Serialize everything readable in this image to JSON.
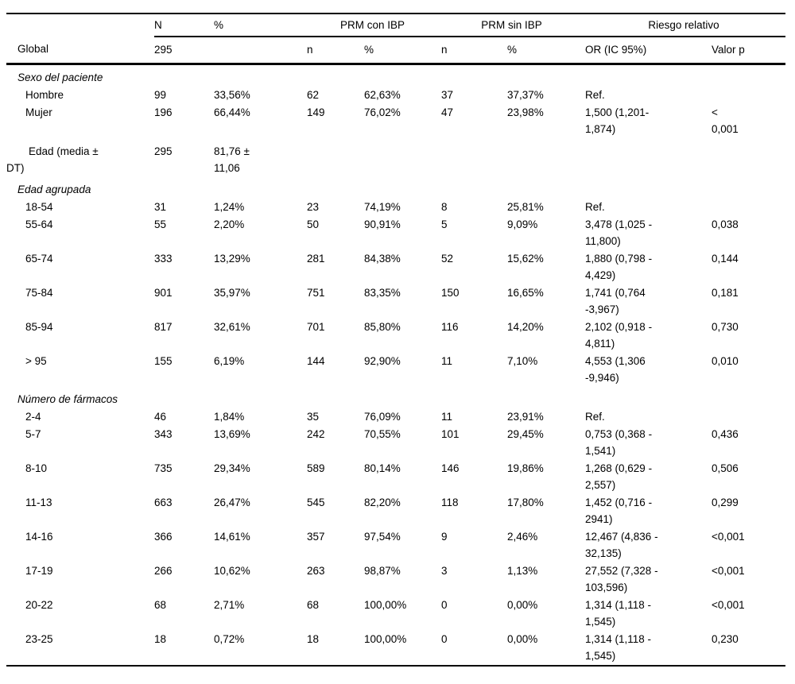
{
  "page": {
    "background_color": "#ffffff",
    "text_color": "#000000",
    "rule_color": "#000000"
  },
  "table": {
    "group_header": {
      "n": "N",
      "pct": "%",
      "prm_con_ibp": "PRM con IBP",
      "prm_sin_ibp": "PRM sin IBP",
      "riesgo_relativo": "Riesgo relativo"
    },
    "global_row": {
      "label": "Global",
      "n": "295",
      "pct": "",
      "n1": "n",
      "pct1": "%",
      "n2": "n",
      "pct2": "%",
      "or": "OR (IC 95%)",
      "p": "Valor p"
    },
    "rows": [
      {
        "type": "section",
        "label": "Sexo del paciente",
        "n": "",
        "pct": "",
        "n1": "",
        "pct1": "",
        "n2": "",
        "pct2": "",
        "or": "",
        "p": ""
      },
      {
        "type": "item",
        "label": "Hombre",
        "n": "99",
        "pct": "33,56%",
        "n1": "62",
        "pct1": "62,63%",
        "n2": "37",
        "pct2": "37,37%",
        "or": "Ref.",
        "p": ""
      },
      {
        "type": "item",
        "label": "Mujer",
        "n": "196",
        "pct": "66,44%",
        "n1": "149",
        "pct1": "76,02%",
        "n2": "47",
        "pct2": "23,98%",
        "or": "1,500 (1,201-\n1,874)",
        "p": "<\n0,001"
      },
      {
        "type": "hang",
        "label": "Edad (media ±\nDT)",
        "n": "295",
        "pct": "81,76 ±\n11,06",
        "n1": "",
        "pct1": "",
        "n2": "",
        "pct2": "",
        "or": "",
        "p": ""
      },
      {
        "type": "section",
        "label": "Edad agrupada",
        "n": "",
        "pct": "",
        "n1": "",
        "pct1": "",
        "n2": "",
        "pct2": "",
        "or": "",
        "p": ""
      },
      {
        "type": "item",
        "label": "18-54",
        "n": "31",
        "pct": "1,24%",
        "n1": "23",
        "pct1": "74,19%",
        "n2": "8",
        "pct2": "25,81%",
        "or": "Ref.",
        "p": ""
      },
      {
        "type": "item",
        "label": "55-64",
        "n": "55",
        "pct": "2,20%",
        "n1": "50",
        "pct1": "90,91%",
        "n2": "5",
        "pct2": "9,09%",
        "or": "3,478 (1,025 -\n11,800)",
        "p": "0,038"
      },
      {
        "type": "item",
        "label": "65-74",
        "n": "333",
        "pct": "13,29%",
        "n1": "281",
        "pct1": "84,38%",
        "n2": "52",
        "pct2": "15,62%",
        "or": "1,880 (0,798 -\n4,429)",
        "p": "0,144"
      },
      {
        "type": "item",
        "label": "75-84",
        "n": "901",
        "pct": "35,97%",
        "n1": "751",
        "pct1": "83,35%",
        "n2": "150",
        "pct2": "16,65%",
        "or": "1,741 (0,764\n-3,967)",
        "p": "0,181"
      },
      {
        "type": "item",
        "label": "85-94",
        "n": "817",
        "pct": "32,61%",
        "n1": "701",
        "pct1": "85,80%",
        "n2": "116",
        "pct2": "14,20%",
        "or": "2,102 (0,918 -\n4,811)",
        "p": "0,730"
      },
      {
        "type": "item",
        "label": "> 95",
        "n": "155",
        "pct": "6,19%",
        "n1": "144",
        "pct1": "92,90%",
        "n2": "11",
        "pct2": "7,10%",
        "or": "4,553 (1,306\n-9,946)",
        "p": "0,010"
      },
      {
        "type": "section",
        "label": "Número de fármacos",
        "n": "",
        "pct": "",
        "n1": "",
        "pct1": "",
        "n2": "",
        "pct2": "",
        "or": "",
        "p": ""
      },
      {
        "type": "item",
        "label": "2-4",
        "n": "46",
        "pct": "1,84%",
        "n1": "35",
        "pct1": "76,09%",
        "n2": "11",
        "pct2": "23,91%",
        "or": "Ref.",
        "p": ""
      },
      {
        "type": "item",
        "label": "5-7",
        "n": "343",
        "pct": "13,69%",
        "n1": "242",
        "pct1": "70,55%",
        "n2": "101",
        "pct2": "29,45%",
        "or": "0,753 (0,368 -\n1,541)",
        "p": "0,436"
      },
      {
        "type": "item",
        "label": "8-10",
        "n": "735",
        "pct": "29,34%",
        "n1": "589",
        "pct1": "80,14%",
        "n2": "146",
        "pct2": "19,86%",
        "or": "1,268 (0,629 -\n2,557)",
        "p": "0,506"
      },
      {
        "type": "item",
        "label": "11-13",
        "n": "663",
        "pct": "26,47%",
        "n1": "545",
        "pct1": "82,20%",
        "n2": "118",
        "pct2": "17,80%",
        "or": "1,452 (0,716 -\n2941)",
        "p": "0,299"
      },
      {
        "type": "item",
        "label": "14-16",
        "n": "366",
        "pct": "14,61%",
        "n1": "357",
        "pct1": "97,54%",
        "n2": "9",
        "pct2": "2,46%",
        "or": "12,467 (4,836 -\n32,135)",
        "p": "<0,001"
      },
      {
        "type": "item",
        "label": "17-19",
        "n": "266",
        "pct": "10,62%",
        "n1": "263",
        "pct1": "98,87%",
        "n2": "3",
        "pct2": "1,13%",
        "or": "27,552 (7,328 -\n103,596)",
        "p": "<0,001"
      },
      {
        "type": "item",
        "label": "20-22",
        "n": "68",
        "pct": "2,71%",
        "n1": "68",
        "pct1": "100,00%",
        "n2": "0",
        "pct2": "0,00%",
        "or": "1,314 (1,118 -\n1,545)",
        "p": "<0,001"
      },
      {
        "type": "item",
        "label": "23-25",
        "n": "18",
        "pct": "0,72%",
        "n1": "18",
        "pct1": "100,00%",
        "n2": "0",
        "pct2": "0,00%",
        "or": "1,314 (1,118 -\n1,545)",
        "p": "0,230"
      }
    ]
  }
}
